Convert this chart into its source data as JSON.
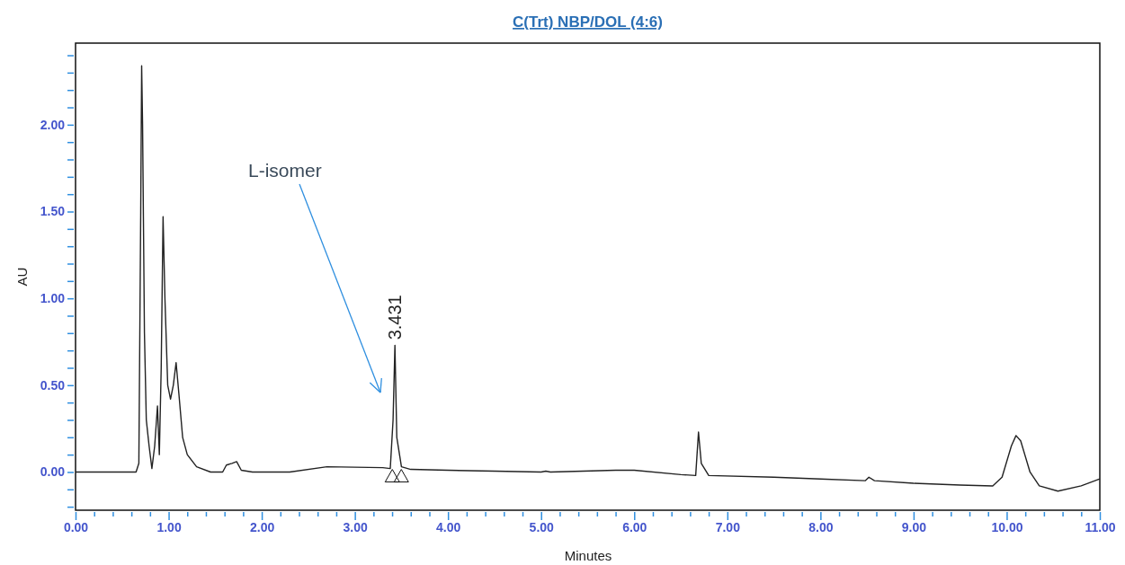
{
  "chart_data": {
    "type": "line",
    "title": "C(Trt) NBP/DOL (4:6)",
    "xlabel": "Minutes",
    "ylabel": "AU",
    "xlim": [
      0,
      11
    ],
    "ylim": [
      -0.22,
      2.47
    ],
    "xticks": [
      {
        "value": 0,
        "label": "0.00"
      },
      {
        "value": 0.2,
        "label": null
      },
      {
        "value": 0.4,
        "label": null
      },
      {
        "value": 0.6,
        "label": null
      },
      {
        "value": 0.8,
        "label": null
      },
      {
        "value": 1,
        "label": "1.00"
      },
      {
        "value": 1.2,
        "label": null
      },
      {
        "value": 1.4,
        "label": null
      },
      {
        "value": 1.6,
        "label": null
      },
      {
        "value": 1.8,
        "label": null
      },
      {
        "value": 2,
        "label": "2.00"
      },
      {
        "value": 2.2,
        "label": null
      },
      {
        "value": 2.4,
        "label": null
      },
      {
        "value": 2.6,
        "label": null
      },
      {
        "value": 2.8,
        "label": null
      },
      {
        "value": 3,
        "label": "3.00"
      },
      {
        "value": 3.2,
        "label": null
      },
      {
        "value": 3.4,
        "label": null
      },
      {
        "value": 3.6,
        "label": null
      },
      {
        "value": 3.8,
        "label": null
      },
      {
        "value": 4,
        "label": "4.00"
      },
      {
        "value": 4.2,
        "label": null
      },
      {
        "value": 4.4,
        "label": null
      },
      {
        "value": 4.6,
        "label": null
      },
      {
        "value": 4.8,
        "label": null
      },
      {
        "value": 5,
        "label": "5.00"
      },
      {
        "value": 5.2,
        "label": null
      },
      {
        "value": 5.4,
        "label": null
      },
      {
        "value": 5.6,
        "label": null
      },
      {
        "value": 5.8,
        "label": null
      },
      {
        "value": 6,
        "label": "6.00"
      },
      {
        "value": 6.2,
        "label": null
      },
      {
        "value": 6.4,
        "label": null
      },
      {
        "value": 6.6,
        "label": null
      },
      {
        "value": 6.8,
        "label": null
      },
      {
        "value": 7,
        "label": "7.00"
      },
      {
        "value": 7.2,
        "label": null
      },
      {
        "value": 7.4,
        "label": null
      },
      {
        "value": 7.6,
        "label": null
      },
      {
        "value": 7.8,
        "label": null
      },
      {
        "value": 8,
        "label": "8.00"
      },
      {
        "value": 8.2,
        "label": null
      },
      {
        "value": 8.4,
        "label": null
      },
      {
        "value": 8.6,
        "label": null
      },
      {
        "value": 8.8,
        "label": null
      },
      {
        "value": 9,
        "label": "9.00"
      },
      {
        "value": 9.2,
        "label": null
      },
      {
        "value": 9.4,
        "label": null
      },
      {
        "value": 9.6,
        "label": null
      },
      {
        "value": 9.8,
        "label": null
      },
      {
        "value": 10,
        "label": "10.00"
      },
      {
        "value": 10.2,
        "label": null
      },
      {
        "value": 10.4,
        "label": null
      },
      {
        "value": 10.6,
        "label": null
      },
      {
        "value": 10.8,
        "label": null
      },
      {
        "value": 11,
        "label": "11.00"
      }
    ],
    "yticks": [
      {
        "value": -0.2,
        "label": null
      },
      {
        "value": -0.1,
        "label": null
      },
      {
        "value": 0,
        "label": "0.00"
      },
      {
        "value": 0.1,
        "label": null
      },
      {
        "value": 0.2,
        "label": null
      },
      {
        "value": 0.3,
        "label": null
      },
      {
        "value": 0.4,
        "label": null
      },
      {
        "value": 0.5,
        "label": "0.50"
      },
      {
        "value": 0.6,
        "label": null
      },
      {
        "value": 0.7,
        "label": null
      },
      {
        "value": 0.8,
        "label": null
      },
      {
        "value": 0.9,
        "label": null
      },
      {
        "value": 1,
        "label": "1.00"
      },
      {
        "value": 1.1,
        "label": null
      },
      {
        "value": 1.2,
        "label": null
      },
      {
        "value": 1.3,
        "label": null
      },
      {
        "value": 1.4,
        "label": null
      },
      {
        "value": 1.5,
        "label": "1.50"
      },
      {
        "value": 1.6,
        "label": null
      },
      {
        "value": 1.7,
        "label": null
      },
      {
        "value": 1.8,
        "label": null
      },
      {
        "value": 1.9,
        "label": null
      },
      {
        "value": 2,
        "label": "2.00"
      },
      {
        "value": 2.1,
        "label": null
      },
      {
        "value": 2.2,
        "label": null
      },
      {
        "value": 2.3,
        "label": null
      },
      {
        "value": 2.4,
        "label": null
      }
    ],
    "grid": false,
    "marker": "none",
    "line_style": "solid",
    "annotations": [
      "L-isomer",
      {
        "text": "3.431",
        "x": 3.431,
        "y": 0.73
      }
    ],
    "series": [
      {
        "color": "#222222",
        "x": [
          0,
          0.5,
          0.65,
          0.68,
          0.7,
          0.71,
          0.72,
          0.74,
          0.76,
          0.78,
          0.79,
          0.82,
          0.85,
          0.88,
          0.9,
          0.92,
          0.94,
          0.96,
          0.99,
          1.02,
          1.05,
          1.08,
          1.11,
          1.15,
          1.2,
          1.3,
          1.45,
          1.58,
          1.62,
          1.68,
          1.73,
          1.78,
          1.9,
          2.3,
          2.7,
          3.3,
          3.38,
          3.41,
          3.43,
          3.45,
          3.5,
          3.6,
          4,
          4.5,
          5,
          5.05,
          5.1,
          5.8,
          6,
          6.5,
          6.66,
          6.69,
          6.72,
          6.8,
          7.5,
          8,
          8.48,
          8.52,
          8.58,
          9,
          9.5,
          9.85,
          9.95,
          10.05,
          10.1,
          10.15,
          10.25,
          10.35,
          10.55,
          10.8,
          11
        ],
        "values": [
          0,
          0,
          0,
          0.05,
          1.5,
          2.34,
          2,
          0.8,
          0.3,
          0.2,
          0.15,
          0.02,
          0.15,
          0.38,
          0.1,
          0.6,
          1.47,
          1,
          0.5,
          0.42,
          0.5,
          0.63,
          0.45,
          0.2,
          0.1,
          0.03,
          0,
          0,
          0.04,
          0.05,
          0.06,
          0.01,
          0,
          0,
          0.03,
          0.025,
          0.02,
          0.3,
          0.73,
          0.2,
          0.03,
          0.015,
          0.01,
          0.005,
          0,
          0.005,
          0,
          0.01,
          0.01,
          -0.015,
          -0.02,
          0.23,
          0.05,
          -0.02,
          -0.03,
          -0.04,
          -0.05,
          -0.03,
          -0.05,
          -0.065,
          -0.075,
          -0.08,
          -0.03,
          0.15,
          0.21,
          0.18,
          0,
          -0.08,
          -0.11,
          -0.08,
          -0.04
        ]
      }
    ]
  }
}
